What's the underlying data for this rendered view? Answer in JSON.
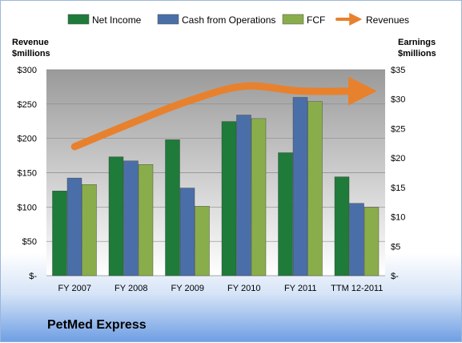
{
  "colors": {
    "net_income": "#1e7b3a",
    "cash_ops": "#4a6fa8",
    "fcf": "#8aad4c",
    "revenues": "#e8812d"
  },
  "company": "PetMed Express",
  "chart_data": {
    "type": "bar",
    "categories": [
      "FY 2007",
      "FY 2008",
      "FY 2009",
      "FY 2010",
      "FY 2011",
      "TTM 12-2011"
    ],
    "series": [
      {
        "name": "Net Income",
        "axis": "right",
        "values": [
          14.4,
          20.2,
          23.1,
          26.2,
          20.9,
          16.8
        ]
      },
      {
        "name": "Cash from Operations",
        "axis": "right",
        "values": [
          16.6,
          19.5,
          14.9,
          27.3,
          30.3,
          12.3
        ]
      },
      {
        "name": "FCF",
        "axis": "right",
        "values": [
          15.5,
          18.9,
          11.8,
          26.7,
          29.6,
          11.6
        ]
      },
      {
        "name": "Revenues",
        "axis": "left",
        "type": "line",
        "values": [
          188,
          222,
          254,
          276,
          269,
          269
        ]
      }
    ],
    "left_axis": {
      "title_line1": "Revenue",
      "title_line2": "$millions",
      "range": [
        0,
        300
      ],
      "ticks": [
        "$-",
        "$50",
        "$100",
        "$150",
        "$200",
        "$250",
        "$300"
      ]
    },
    "right_axis": {
      "title_line1": "Earnings",
      "title_line2": "$millions",
      "range": [
        0,
        35
      ],
      "ticks": [
        "$-",
        "$5",
        "$10",
        "$15",
        "$20",
        "$25",
        "$30",
        "$35"
      ]
    },
    "legend_position": "top",
    "grid": true
  }
}
